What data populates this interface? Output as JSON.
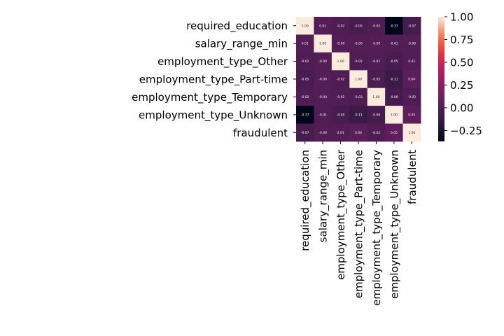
{
  "chart_data": {
    "type": "heatmap",
    "title": "",
    "xlabel": "",
    "ylabel": "",
    "rows": [
      "required_education",
      "salary_range_min",
      "employment_type_Other",
      "employment_type_Part-time",
      "employment_type_Temporary",
      "employment_type_Unknown",
      "fraudulent"
    ],
    "columns": [
      "required_education",
      "salary_range_min",
      "employment_type_Other",
      "employment_type_Part-time",
      "employment_type_Temporary",
      "employment_type_Unknown",
      "fraudulent"
    ],
    "values": [
      [
        1.0,
        0.01,
        -0.02,
        -0.05,
        -0.02,
        -0.37,
        -0.07
      ],
      [
        0.01,
        1.0,
        -0.0,
        -0.0,
        -0.0,
        -0.01,
        -0.0
      ],
      [
        -0.02,
        -0.0,
        1.0,
        -0.02,
        -0.01,
        -0.05,
        0.01
      ],
      [
        -0.05,
        -0.0,
        -0.02,
        1.0,
        -0.03,
        -0.11,
        0.04
      ],
      [
        -0.02,
        -0.0,
        -0.01,
        -0.03,
        1.0,
        -0.06,
        -0.02
      ],
      [
        -0.37,
        -0.01,
        -0.05,
        -0.11,
        -0.06,
        1.0,
        0.05
      ],
      [
        -0.07,
        -0.0,
        0.01,
        0.04,
        -0.02,
        0.05,
        1.0
      ]
    ],
    "annotation_format": "0.00",
    "colorbar": {
      "range": [
        -0.37,
        1.0
      ],
      "ticks": [
        -0.25,
        0.0,
        0.25,
        0.5,
        0.75,
        1.0
      ],
      "tick_labels": [
        "−0.25",
        "0.00",
        "0.25",
        "0.50",
        "0.75",
        "1.00"
      ],
      "placement": "right",
      "colormap": "rocket",
      "colormap_stops": [
        [
          0.0,
          "#03051a"
        ],
        [
          0.1,
          "#221331"
        ],
        [
          0.2,
          "#3f1b4a"
        ],
        [
          0.3,
          "#5b1e5b"
        ],
        [
          0.4,
          "#7a1e62"
        ],
        [
          0.5,
          "#9b1c63"
        ],
        [
          0.6,
          "#be1e5c"
        ],
        [
          0.7,
          "#e13342"
        ],
        [
          0.8,
          "#f06043"
        ],
        [
          0.9,
          "#f5a27c"
        ],
        [
          1.0,
          "#faebdd"
        ]
      ]
    }
  }
}
